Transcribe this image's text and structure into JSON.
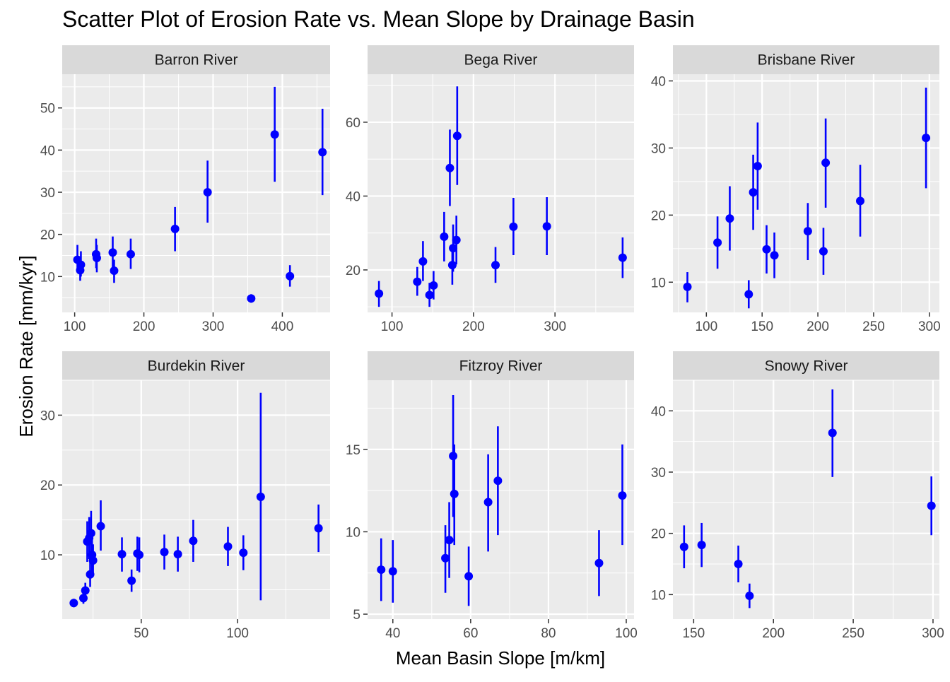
{
  "chart_data": {
    "type": "scatter",
    "title": "Scatter Plot of Erosion Rate vs. Mean Slope by Drainage Basin",
    "xlabel": "Mean Basin Slope [m/km]",
    "ylabel": "Erosion Rate [mm/kyr]",
    "point_color": "#0000FF",
    "panel_bg": "#EBEBEB",
    "strip_bg": "#D9D9D9",
    "grid_color": "#FFFFFF",
    "error_bars": true,
    "facets": [
      {
        "name": "Barron River",
        "xlim": [
          82,
          469
        ],
        "ylim": [
          1.5,
          58
        ],
        "xticks": [
          100,
          200,
          300,
          400
        ],
        "yticks": [
          10,
          20,
          30,
          40,
          50
        ],
        "points": [
          {
            "x": 104,
            "y": 14.0,
            "lo": 11.0,
            "hi": 17.5
          },
          {
            "x": 108,
            "y": 11.5,
            "lo": 9.0,
            "hi": 14.5
          },
          {
            "x": 109,
            "y": 12.8,
            "lo": 10.0,
            "hi": 16.0
          },
          {
            "x": 131,
            "y": 15.3,
            "lo": 12.0,
            "hi": 19.0
          },
          {
            "x": 132,
            "y": 14.4,
            "lo": 11.0,
            "hi": 17.5
          },
          {
            "x": 155,
            "y": 15.7,
            "lo": 12.0,
            "hi": 19.5
          },
          {
            "x": 157,
            "y": 11.4,
            "lo": 8.5,
            "hi": 14.0
          },
          {
            "x": 181,
            "y": 15.3,
            "lo": 11.8,
            "hi": 19.0
          },
          {
            "x": 245,
            "y": 21.3,
            "lo": 16.0,
            "hi": 26.5
          },
          {
            "x": 292,
            "y": 30.0,
            "lo": 22.8,
            "hi": 37.5
          },
          {
            "x": 355,
            "y": 4.8,
            "lo": 3.8,
            "hi": 5.8
          },
          {
            "x": 389,
            "y": 43.7,
            "lo": 32.5,
            "hi": 55.0
          },
          {
            "x": 411,
            "y": 10.1,
            "lo": 7.6,
            "hi": 12.7
          },
          {
            "x": 458,
            "y": 39.5,
            "lo": 29.3,
            "hi": 49.8
          }
        ]
      },
      {
        "name": "Bega River",
        "xlim": [
          70,
          397
        ],
        "ylim": [
          8.5,
          73
        ],
        "xticks": [
          100,
          200,
          300
        ],
        "yticks": [
          20,
          40,
          60
        ],
        "points": [
          {
            "x": 84,
            "y": 13.6,
            "lo": 10.0,
            "hi": 17.0
          },
          {
            "x": 131,
            "y": 16.8,
            "lo": 13.0,
            "hi": 20.8
          },
          {
            "x": 138,
            "y": 22.3,
            "lo": 17.0,
            "hi": 27.8
          },
          {
            "x": 146,
            "y": 13.2,
            "lo": 10.0,
            "hi": 16.5
          },
          {
            "x": 151,
            "y": 15.8,
            "lo": 12.0,
            "hi": 19.7
          },
          {
            "x": 164,
            "y": 29.0,
            "lo": 22.3,
            "hi": 35.7
          },
          {
            "x": 171,
            "y": 47.6,
            "lo": 37.3,
            "hi": 58.0
          },
          {
            "x": 174,
            "y": 21.3,
            "lo": 16.0,
            "hi": 26.5
          },
          {
            "x": 175,
            "y": 25.9,
            "lo": 19.5,
            "hi": 32.3
          },
          {
            "x": 179,
            "y": 28.1,
            "lo": 21.5,
            "hi": 34.7
          },
          {
            "x": 180,
            "y": 56.3,
            "lo": 43.0,
            "hi": 69.7
          },
          {
            "x": 227,
            "y": 21.3,
            "lo": 16.5,
            "hi": 26.2
          },
          {
            "x": 249,
            "y": 31.7,
            "lo": 24.0,
            "hi": 39.5
          },
          {
            "x": 290,
            "y": 31.8,
            "lo": 24.0,
            "hi": 39.7
          },
          {
            "x": 383,
            "y": 23.3,
            "lo": 17.8,
            "hi": 28.8
          }
        ]
      },
      {
        "name": "Brisbane River",
        "xlim": [
          70,
          309
        ],
        "ylim": [
          5.5,
          41
        ],
        "xticks": [
          100,
          150,
          200,
          250,
          300
        ],
        "yticks": [
          10,
          20,
          30,
          40
        ],
        "points": [
          {
            "x": 83,
            "y": 9.3,
            "lo": 7.0,
            "hi": 11.5
          },
          {
            "x": 110,
            "y": 15.9,
            "lo": 12.0,
            "hi": 19.8
          },
          {
            "x": 121,
            "y": 19.5,
            "lo": 14.7,
            "hi": 24.3
          },
          {
            "x": 138,
            "y": 8.2,
            "lo": 6.1,
            "hi": 10.3
          },
          {
            "x": 142,
            "y": 23.4,
            "lo": 17.8,
            "hi": 29.0
          },
          {
            "x": 146,
            "y": 27.3,
            "lo": 20.8,
            "hi": 33.8
          },
          {
            "x": 154,
            "y": 14.9,
            "lo": 11.3,
            "hi": 18.5
          },
          {
            "x": 161,
            "y": 14.0,
            "lo": 10.6,
            "hi": 17.4
          },
          {
            "x": 191,
            "y": 17.6,
            "lo": 13.3,
            "hi": 21.8
          },
          {
            "x": 205,
            "y": 14.6,
            "lo": 11.1,
            "hi": 18.1
          },
          {
            "x": 207,
            "y": 27.8,
            "lo": 21.1,
            "hi": 34.4
          },
          {
            "x": 238,
            "y": 22.1,
            "lo": 16.8,
            "hi": 27.5
          },
          {
            "x": 297,
            "y": 31.5,
            "lo": 24.0,
            "hi": 39.0
          }
        ]
      },
      {
        "name": "Burdekin River",
        "xlim": [
          9,
          148
        ],
        "ylim": [
          0.8,
          35
        ],
        "xticks": [
          50,
          100
        ],
        "yticks": [
          10,
          20,
          30
        ],
        "points": [
          {
            "x": 15,
            "y": 3.1,
            "lo": 2.5,
            "hi": 3.7
          },
          {
            "x": 20,
            "y": 3.8,
            "lo": 3.0,
            "hi": 4.6
          },
          {
            "x": 21,
            "y": 4.9,
            "lo": 3.8,
            "hi": 6.0
          },
          {
            "x": 22,
            "y": 11.9,
            "lo": 9.0,
            "hi": 14.8
          },
          {
            "x": 23,
            "y": 12.4,
            "lo": 9.4,
            "hi": 15.4
          },
          {
            "x": 23.5,
            "y": 7.2,
            "lo": 5.4,
            "hi": 9.0
          },
          {
            "x": 24,
            "y": 13.1,
            "lo": 10.0,
            "hi": 16.3
          },
          {
            "x": 24.5,
            "y": 10.0,
            "lo": 7.6,
            "hi": 12.5
          },
          {
            "x": 25,
            "y": 9.2,
            "lo": 7.0,
            "hi": 11.5
          },
          {
            "x": 29,
            "y": 14.1,
            "lo": 10.6,
            "hi": 17.8
          },
          {
            "x": 40,
            "y": 10.1,
            "lo": 7.6,
            "hi": 12.5
          },
          {
            "x": 45,
            "y": 6.3,
            "lo": 4.7,
            "hi": 7.9
          },
          {
            "x": 48,
            "y": 10.2,
            "lo": 7.7,
            "hi": 12.6
          },
          {
            "x": 49,
            "y": 10.0,
            "lo": 7.5,
            "hi": 12.5
          },
          {
            "x": 62,
            "y": 10.4,
            "lo": 7.9,
            "hi": 12.9
          },
          {
            "x": 69,
            "y": 10.1,
            "lo": 7.6,
            "hi": 12.6
          },
          {
            "x": 77,
            "y": 12.0,
            "lo": 9.0,
            "hi": 15.0
          },
          {
            "x": 95,
            "y": 11.2,
            "lo": 8.4,
            "hi": 14.0
          },
          {
            "x": 103,
            "y": 10.3,
            "lo": 7.8,
            "hi": 12.8
          },
          {
            "x": 112,
            "y": 18.3,
            "lo": 3.5,
            "hi": 33.2
          },
          {
            "x": 142,
            "y": 13.8,
            "lo": 10.4,
            "hi": 17.2
          }
        ]
      },
      {
        "name": "Fitzroy River",
        "xlim": [
          33.5,
          102
        ],
        "ylim": [
          4.7,
          19.2
        ],
        "xticks": [
          40,
          60,
          80,
          100
        ],
        "yticks": [
          5,
          10,
          15
        ],
        "points": [
          {
            "x": 37,
            "y": 7.7,
            "lo": 5.8,
            "hi": 9.6
          },
          {
            "x": 40,
            "y": 7.6,
            "lo": 5.7,
            "hi": 9.5
          },
          {
            "x": 53.5,
            "y": 8.4,
            "lo": 6.3,
            "hi": 10.4
          },
          {
            "x": 54.5,
            "y": 9.5,
            "lo": 7.2,
            "hi": 11.8
          },
          {
            "x": 55.5,
            "y": 14.6,
            "lo": 10.9,
            "hi": 18.3
          },
          {
            "x": 55.8,
            "y": 12.3,
            "lo": 9.2,
            "hi": 15.3
          },
          {
            "x": 59.5,
            "y": 7.3,
            "lo": 5.5,
            "hi": 9.1
          },
          {
            "x": 64.5,
            "y": 11.8,
            "lo": 8.8,
            "hi": 14.7
          },
          {
            "x": 67,
            "y": 13.1,
            "lo": 9.8,
            "hi": 16.4
          },
          {
            "x": 93,
            "y": 8.1,
            "lo": 6.1,
            "hi": 10.1
          },
          {
            "x": 99,
            "y": 12.2,
            "lo": 9.2,
            "hi": 15.3
          }
        ]
      },
      {
        "name": "Snowy River",
        "xlim": [
          137,
          304
        ],
        "ylim": [
          6,
          45
        ],
        "xticks": [
          150,
          200,
          250,
          300
        ],
        "yticks": [
          10,
          20,
          30,
          40
        ],
        "points": [
          {
            "x": 144,
            "y": 17.8,
            "lo": 14.3,
            "hi": 21.3
          },
          {
            "x": 155,
            "y": 18.1,
            "lo": 14.5,
            "hi": 21.7
          },
          {
            "x": 178,
            "y": 15.0,
            "lo": 12.0,
            "hi": 18.0
          },
          {
            "x": 185,
            "y": 9.8,
            "lo": 7.8,
            "hi": 11.8
          },
          {
            "x": 237,
            "y": 36.4,
            "lo": 29.2,
            "hi": 43.5
          },
          {
            "x": 299,
            "y": 24.5,
            "lo": 19.7,
            "hi": 29.3
          }
        ]
      }
    ]
  }
}
